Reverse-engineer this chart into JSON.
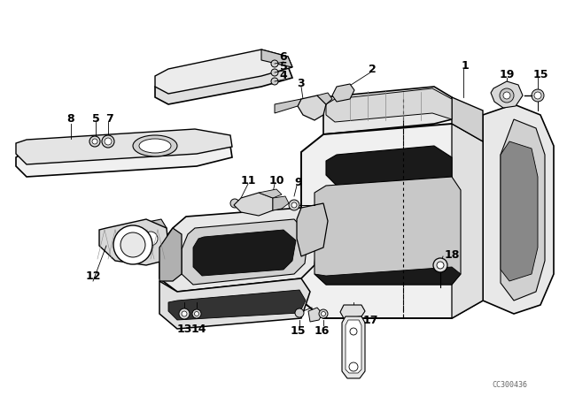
{
  "bg_color": "#ffffff",
  "line_color": "#000000",
  "watermark": "CC300436",
  "fig_width": 6.4,
  "fig_height": 4.48,
  "dpi": 100
}
